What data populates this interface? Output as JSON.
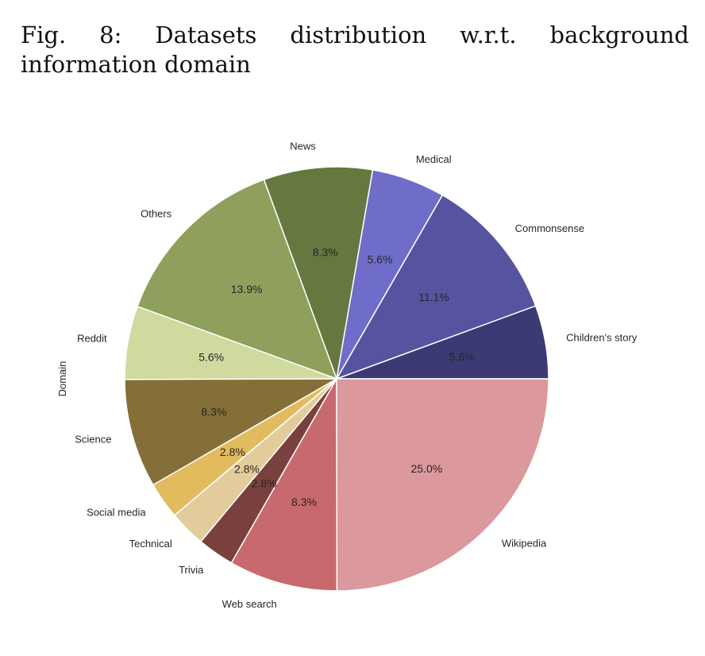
{
  "figure": {
    "caption": "Fig. 8: Datasets distribution w.r.t. background information domain"
  },
  "chart_data": {
    "type": "pie",
    "title": "Fig. 8: Datasets distribution w.r.t. background information domain",
    "ylabel": "Domain",
    "start_angle_deg": 0,
    "direction": "counterclockwise",
    "slices": [
      {
        "label": "Children's story",
        "value": 5.6,
        "pct_label": "5.6%",
        "color": "#3b3a75"
      },
      {
        "label": "Commonsense",
        "value": 11.1,
        "pct_label": "11.1%",
        "color": "#5653a0"
      },
      {
        "label": "Medical",
        "value": 5.6,
        "pct_label": "5.6%",
        "color": "#6f6dc9"
      },
      {
        "label": "News",
        "value": 8.3,
        "pct_label": "8.3%",
        "color": "#657840"
      },
      {
        "label": "Others",
        "value": 13.9,
        "pct_label": "13.9%",
        "color": "#8f9f5c"
      },
      {
        "label": "Reddit",
        "value": 5.6,
        "pct_label": "5.6%",
        "color": "#d0da9f"
      },
      {
        "label": "Science",
        "value": 8.3,
        "pct_label": "8.3%",
        "color": "#846f39"
      },
      {
        "label": "Social media",
        "value": 2.8,
        "pct_label": "2.8%",
        "color": "#e1bb5e"
      },
      {
        "label": "Technical",
        "value": 2.8,
        "pct_label": "2.8%",
        "color": "#e3cc9b"
      },
      {
        "label": "Trivia",
        "value": 2.8,
        "pct_label": "2.8%",
        "color": "#7a403d"
      },
      {
        "label": "Web search",
        "value": 8.3,
        "pct_label": "8.3%",
        "color": "#c8696e"
      },
      {
        "label": "Wikipedia",
        "value": 25.0,
        "pct_label": "25.0%",
        "color": "#db989d"
      }
    ]
  }
}
